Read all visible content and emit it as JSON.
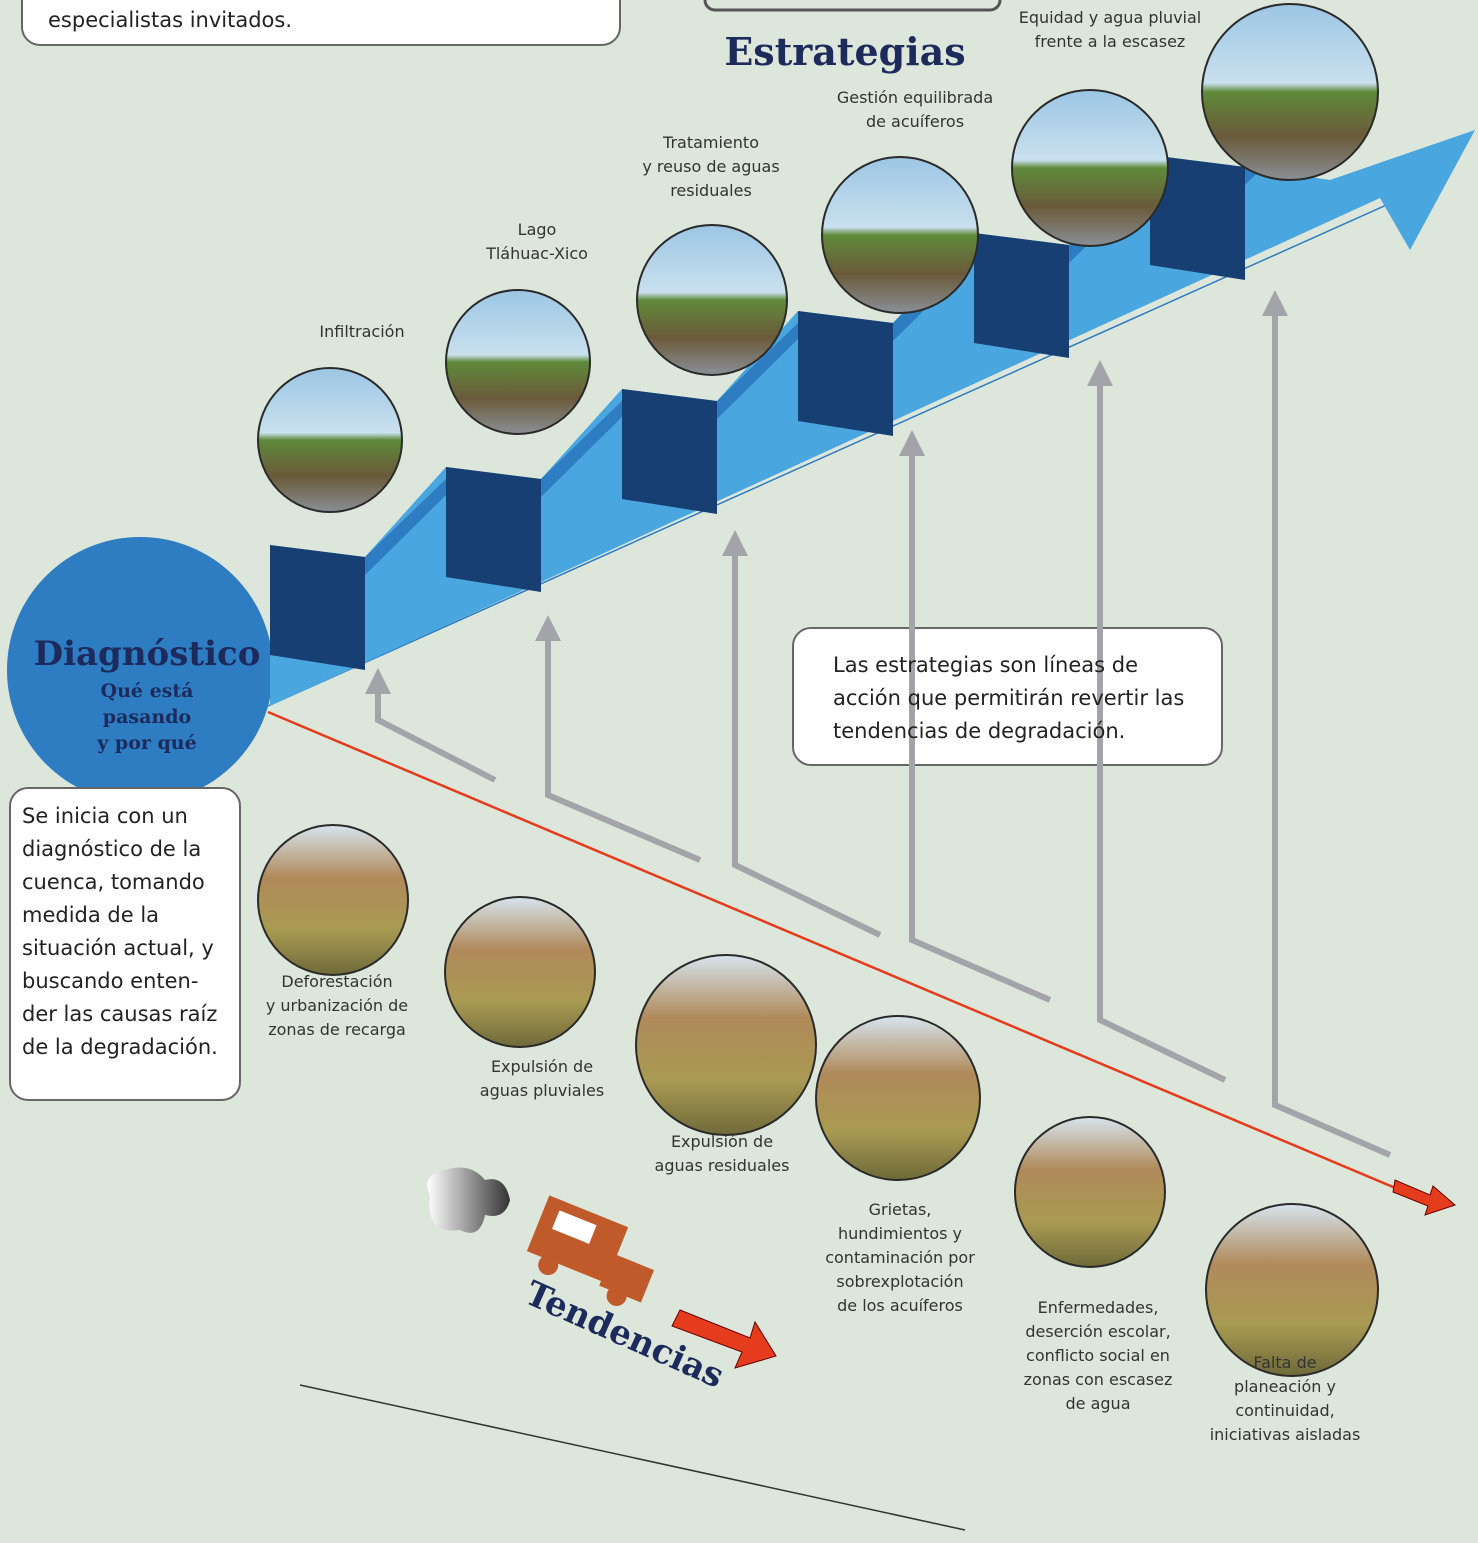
{
  "top_note": "especialistas invitados.",
  "strategies_title": "Estrategias",
  "strategies": [
    [
      "Infiltración"
    ],
    [
      "Lago",
      "Tláhuac-Xico"
    ],
    [
      "Tratamiento",
      "y reuso de aguas",
      "residuales"
    ],
    [
      "Gestión equilibrada",
      "de acuíferos"
    ],
    [
      "Equidad y agua pluvial",
      "frente a la escasez"
    ]
  ],
  "diagnostic": {
    "title": "Diagnóstico",
    "subtitle": [
      "Qué está",
      "pasando",
      "y por qué"
    ]
  },
  "intro_note": [
    "Se inicia con un",
    "diagnóstico de la",
    "cuenca, tomando",
    "medida de la",
    "situación actual, y",
    "buscando enten-",
    "der las causas raíz",
    "de la degradación."
  ],
  "strategies_note": [
    "Las estrategias son líneas de",
    "acción que permitirán revertir las",
    "tendencias de degradación."
  ],
  "tendencies_title": "Tendencias",
  "tendencies": [
    [
      "Deforestación",
      "y urbanización de",
      "zonas de recarga"
    ],
    [
      "Expulsión de",
      "aguas pluviales"
    ],
    [
      "Expulsión de",
      "aguas residuales"
    ],
    [
      "Grietas,",
      "hundimientos y",
      "contaminación por",
      "sobrexplotación",
      "de los acuíferos"
    ],
    [
      "Enfermedades,",
      "deserción escolar,",
      "conflicto social en",
      "zonas con escasez",
      "de agua"
    ],
    [
      "Falta de",
      "planeación y",
      "continuidad,",
      "iniciativas aisladas"
    ]
  ]
}
